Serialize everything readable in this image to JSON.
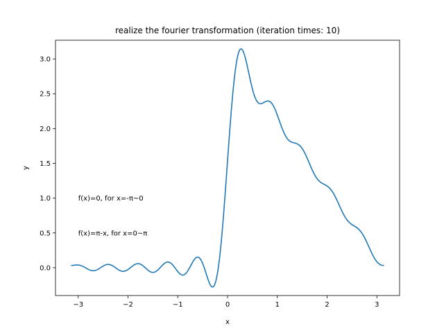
{
  "chart_data": {
    "type": "line",
    "title": "realize the fourier transformation (iteration times: 10)",
    "xlabel": "x",
    "ylabel": "y",
    "xlim": [
      -3.4558,
      3.4558
    ],
    "ylim": [
      -0.4,
      3.27
    ],
    "xticks": [
      -3,
      -2,
      -1,
      0,
      1,
      2,
      3
    ],
    "xtick_labels": [
      "−3",
      "−2",
      "−1",
      "0",
      "1",
      "2",
      "3"
    ],
    "yticks": [
      0.0,
      0.5,
      1.0,
      1.5,
      2.0,
      2.5,
      3.0
    ],
    "ytick_labels": [
      "0.0",
      "0.5",
      "1.0",
      "1.5",
      "2.0",
      "2.5",
      "3.0"
    ],
    "grid": false,
    "legend": "none",
    "annotations": [
      {
        "text": "f(x)=0, for x=-π~0",
        "x": -3.0,
        "y": 1.0
      },
      {
        "text": "f(x)=π-x, for x=0~π",
        "x": -3.0,
        "y": 0.5
      }
    ],
    "series": [
      {
        "color": "#1f77b4",
        "function": "fourier_partial_sum",
        "terms": 10,
        "x_range": [
          -3.14159,
          3.14159
        ]
      }
    ]
  }
}
